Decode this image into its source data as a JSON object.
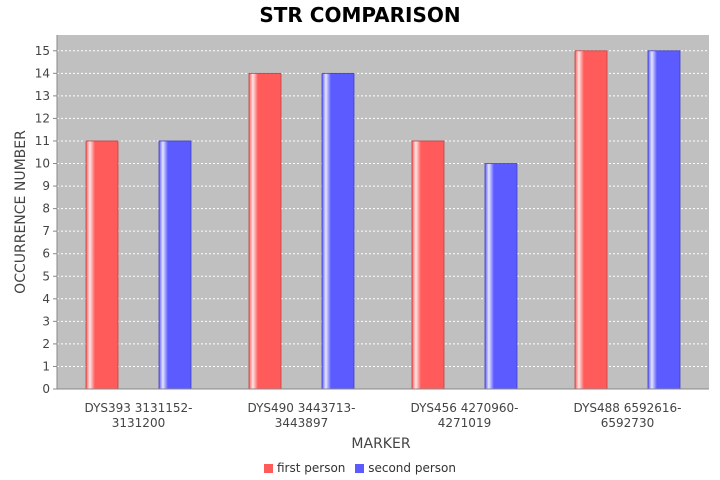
{
  "chart_data": {
    "type": "bar",
    "title": "STR COMPARISON",
    "xlabel": "MARKER",
    "ylabel": "OCCURRENCE NUMBER",
    "categories": [
      [
        "DYS393 3131152-",
        "3131200"
      ],
      [
        "DYS490 3443713-",
        "3443897"
      ],
      [
        "DYS456 4270960-",
        "4271019"
      ],
      [
        "DYS488 6592616-",
        "6592730"
      ]
    ],
    "series": [
      {
        "name": "first person",
        "values": [
          11,
          14,
          11,
          15
        ],
        "color": "#ff5b5b"
      },
      {
        "name": "second person",
        "values": [
          11,
          14,
          10,
          15
        ],
        "color": "#5b5bff"
      }
    ],
    "ylim": [
      0,
      15.7
    ],
    "yticks": [
      0,
      1,
      2,
      3,
      4,
      5,
      6,
      7,
      8,
      9,
      10,
      11,
      12,
      13,
      14,
      15
    ],
    "grid": true,
    "plot_background": "#c0c0c0",
    "legend_position": "bottom"
  }
}
